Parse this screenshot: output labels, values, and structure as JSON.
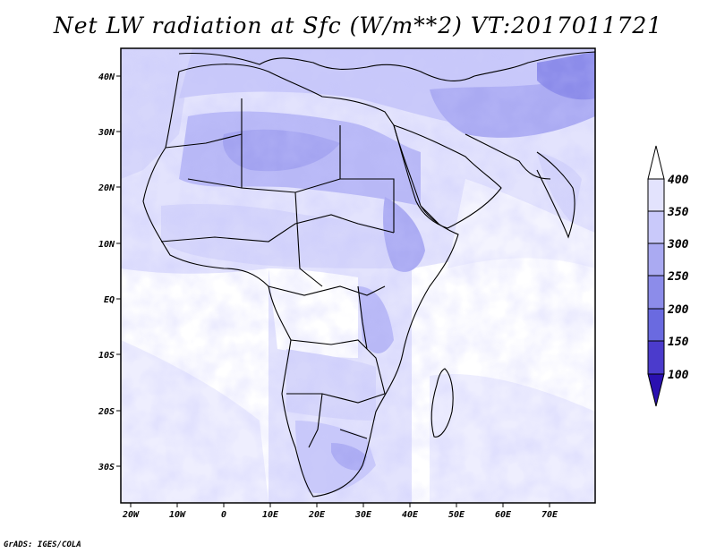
{
  "title": "Net LW radiation at Sfc (W/m**2) VT:2017011721",
  "credit": "GrADS: IGES/COLA",
  "map": {
    "lon_ticks": [
      "20W",
      "10W",
      "0",
      "10E",
      "20E",
      "30E",
      "40E",
      "50E",
      "60E",
      "70E"
    ],
    "lat_ticks": [
      "40N",
      "30N",
      "20N",
      "10N",
      "EQ",
      "10S",
      "20S",
      "30S"
    ]
  },
  "colorbar": {
    "labels": [
      "400",
      "350",
      "300",
      "250",
      "200",
      "150",
      "100"
    ],
    "colors": [
      "#ffffff",
      "#e3e3fd",
      "#c9c9fa",
      "#aaaaf2",
      "#8c8cea",
      "#6a6ae0",
      "#4b3bcc",
      "#2a10b0"
    ]
  }
}
